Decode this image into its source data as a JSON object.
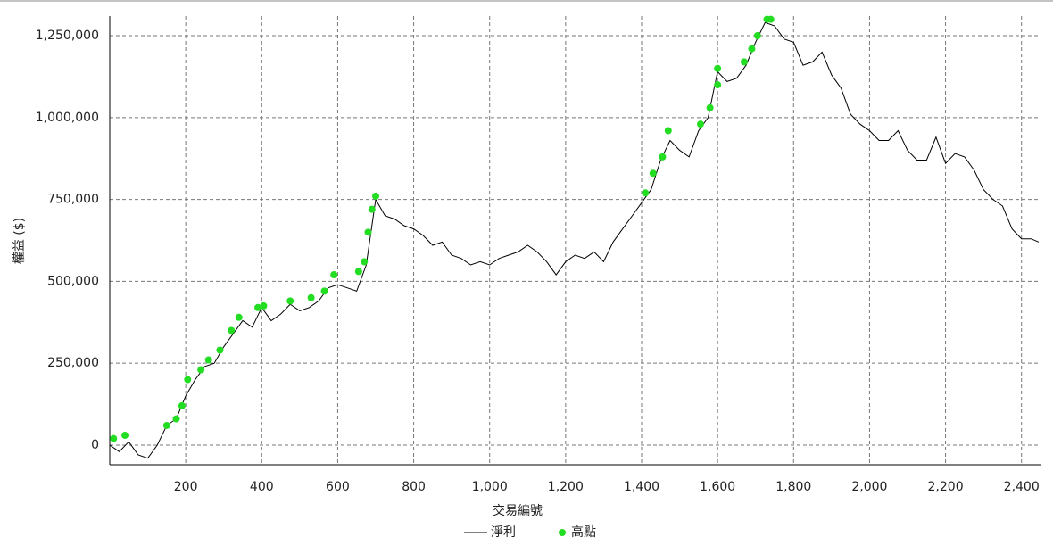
{
  "chart_data": {
    "type": "line",
    "x_label": "交易編號",
    "y_label": "權益 ($)",
    "xlim": [
      0,
      2450
    ],
    "ylim": [
      -60000,
      1310000
    ],
    "xticks": [
      200,
      400,
      600,
      800,
      {
        "value": 1000,
        "label": "1,000"
      },
      {
        "value": 1200,
        "label": "1,200"
      },
      {
        "value": 1400,
        "label": "1,400"
      },
      {
        "value": 1600,
        "label": "1,600"
      },
      {
        "value": 1800,
        "label": "1,800"
      },
      {
        "value": 2000,
        "label": "2,000"
      },
      {
        "value": 2200,
        "label": "2,200"
      },
      {
        "value": 2400,
        "label": "2,400"
      }
    ],
    "yticks": [
      0,
      {
        "value": 250000,
        "label": "250,000"
      },
      {
        "value": 500000,
        "label": "500,000"
      },
      {
        "value": 750000,
        "label": "750,000"
      },
      {
        "value": 1000000,
        "label": "1,000,000"
      },
      {
        "value": 1250000,
        "label": "1,250,000"
      }
    ],
    "grid": true,
    "series": [
      {
        "name": "淨利",
        "color": "#000000",
        "type": "line",
        "x": [
          0,
          25,
          50,
          75,
          100,
          125,
          150,
          175,
          200,
          225,
          250,
          275,
          300,
          325,
          350,
          375,
          400,
          425,
          450,
          475,
          500,
          525,
          550,
          575,
          600,
          625,
          650,
          675,
          700,
          725,
          750,
          775,
          800,
          825,
          850,
          875,
          900,
          925,
          950,
          975,
          1000,
          1025,
          1050,
          1075,
          1100,
          1125,
          1150,
          1175,
          1200,
          1225,
          1250,
          1275,
          1300,
          1325,
          1350,
          1375,
          1400,
          1425,
          1450,
          1475,
          1500,
          1525,
          1550,
          1575,
          1600,
          1625,
          1650,
          1675,
          1700,
          1725,
          1750,
          1775,
          1800,
          1825,
          1850,
          1875,
          1900,
          1925,
          1950,
          1975,
          2000,
          2025,
          2050,
          2075,
          2100,
          2125,
          2150,
          2175,
          2200,
          2225,
          2250,
          2275,
          2300,
          2325,
          2350,
          2375,
          2400,
          2425,
          2445
        ],
        "values": [
          0,
          -20000,
          10000,
          -30000,
          -40000,
          0,
          60000,
          80000,
          150000,
          200000,
          240000,
          250000,
          300000,
          340000,
          380000,
          360000,
          420000,
          380000,
          400000,
          430000,
          410000,
          420000,
          440000,
          480000,
          490000,
          480000,
          470000,
          550000,
          750000,
          700000,
          690000,
          670000,
          660000,
          640000,
          610000,
          620000,
          580000,
          570000,
          550000,
          560000,
          550000,
          570000,
          580000,
          590000,
          610000,
          590000,
          560000,
          520000,
          560000,
          580000,
          570000,
          590000,
          560000,
          620000,
          660000,
          700000,
          740000,
          780000,
          870000,
          930000,
          900000,
          880000,
          960000,
          1000000,
          1140000,
          1110000,
          1120000,
          1160000,
          1230000,
          1290000,
          1280000,
          1240000,
          1230000,
          1160000,
          1170000,
          1200000,
          1130000,
          1090000,
          1010000,
          980000,
          960000,
          930000,
          930000,
          960000,
          900000,
          870000,
          870000,
          940000,
          860000,
          890000,
          880000,
          840000,
          780000,
          750000,
          730000,
          660000,
          630000,
          630000,
          620000
        ]
      },
      {
        "name": "高點",
        "color": "#22dd22",
        "type": "scatter",
        "x": [
          10,
          40,
          150,
          175,
          190,
          205,
          240,
          260,
          290,
          320,
          340,
          390,
          405,
          475,
          530,
          565,
          590,
          655,
          670,
          680,
          690,
          700,
          1410,
          1430,
          1455,
          1470,
          1555,
          1580,
          1600,
          1600,
          1670,
          1690,
          1705,
          1730,
          1740
        ],
        "values": [
          20000,
          30000,
          60000,
          80000,
          120000,
          200000,
          230000,
          260000,
          290000,
          350000,
          390000,
          420000,
          425000,
          440000,
          450000,
          470000,
          520000,
          530000,
          560000,
          650000,
          720000,
          760000,
          770000,
          830000,
          880000,
          960000,
          980000,
          1030000,
          1150000,
          1100000,
          1170000,
          1210000,
          1250000,
          1300000,
          1300000
        ]
      }
    ]
  }
}
